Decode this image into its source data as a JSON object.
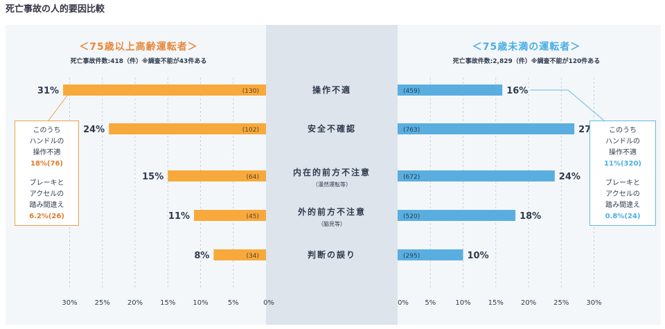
{
  "page_title": "死亡事故の人的要因比較",
  "colors": {
    "older": "#f7a93b",
    "younger": "#5aaedf",
    "older_text": "#e8873a",
    "younger_text": "#4aaee4"
  },
  "left_heading": "＜75歳以上高齢運転者＞",
  "left_subheading": "死亡事故件数:418（件）※調査不能が43件ある",
  "right_heading": "＜75歳未満の運転者＞",
  "right_subheading": "死亡事故件数:2,829（件）※調査不能が120件ある",
  "left_callout": {
    "l1": "このうち",
    "l2": "ハンドルの",
    "l3": "操作不適",
    "v1": "18%(76)",
    "l4": "ブレーキと",
    "l5": "アクセルの",
    "l6": "踏み間違え",
    "v2": "6.2%(26)"
  },
  "right_callout": {
    "l1": "このうち",
    "l2": "ハンドルの",
    "l3": "操作不適",
    "v1": "11%(320)",
    "l4": "ブレーキと",
    "l5": "アクセルの",
    "l6": "踏み間違え",
    "v2": "0.8%(24)"
  },
  "chart_data": {
    "type": "bar",
    "orientation": "horizontal-butterfly",
    "categories": [
      "操作不適",
      "安全不確認",
      "内在的前方不注意",
      "外的前方不注意",
      "判断の誤り"
    ],
    "category_notes": [
      "",
      "",
      "（漫然運転等）",
      "（脇見等）",
      ""
    ],
    "xlim": [
      0,
      30
    ],
    "ticks": [
      0,
      5,
      10,
      15,
      20,
      25,
      30
    ],
    "tick_labels": [
      "0%",
      "5%",
      "10%",
      "15%",
      "20%",
      "25%",
      "30%"
    ],
    "grid": true,
    "series": [
      {
        "side": "left",
        "values": [
          31,
          24,
          15,
          11,
          8
        ],
        "labels": [
          "31%",
          "24%",
          "15%",
          "11%",
          "8%"
        ],
        "counts": [
          "(130)",
          "(102)",
          "(64)",
          "(45)",
          "(34)"
        ]
      },
      {
        "side": "right",
        "values": [
          16,
          27,
          24,
          18,
          10
        ],
        "labels": [
          "16%",
          "27%",
          "24%",
          "18%",
          "10%"
        ],
        "counts": [
          "(459)",
          "(763)",
          "(672)",
          "(520)",
          "(295)"
        ]
      }
    ]
  }
}
